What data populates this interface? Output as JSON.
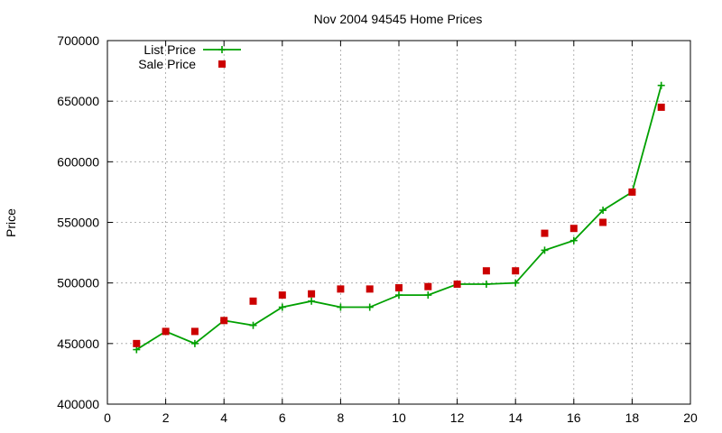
{
  "chart_data": {
    "type": "line",
    "title": "Nov 2004 94545 Home Prices",
    "xlabel": "",
    "ylabel": "Price",
    "xlim": [
      0,
      20
    ],
    "ylim": [
      400000,
      700000
    ],
    "xticks": [
      0,
      2,
      4,
      6,
      8,
      10,
      12,
      14,
      16,
      18,
      20
    ],
    "yticks": [
      400000,
      450000,
      500000,
      550000,
      600000,
      650000,
      700000
    ],
    "grid": true,
    "legend_position": "top-left",
    "series": [
      {
        "name": "List Price",
        "style": "lines+crosses",
        "color": "#00a000",
        "x": [
          1,
          2,
          3,
          4,
          5,
          6,
          7,
          8,
          9,
          10,
          11,
          12,
          13,
          14,
          15,
          16,
          17,
          18,
          19
        ],
        "y": [
          445000,
          460000,
          450000,
          469000,
          465000,
          480000,
          485000,
          480000,
          480000,
          490000,
          490000,
          499000,
          499000,
          500000,
          527000,
          535000,
          560000,
          575000,
          663000
        ]
      },
      {
        "name": "Sale Price",
        "style": "squares",
        "color": "#cc0000",
        "x": [
          1,
          2,
          3,
          4,
          5,
          6,
          7,
          8,
          9,
          10,
          11,
          12,
          13,
          14,
          15,
          16,
          17,
          18,
          19
        ],
        "y": [
          450000,
          460000,
          460000,
          469000,
          485000,
          490000,
          491000,
          495000,
          495000,
          496000,
          497000,
          499000,
          510000,
          510000,
          541000,
          545000,
          550000,
          575000,
          645000
        ]
      }
    ]
  }
}
